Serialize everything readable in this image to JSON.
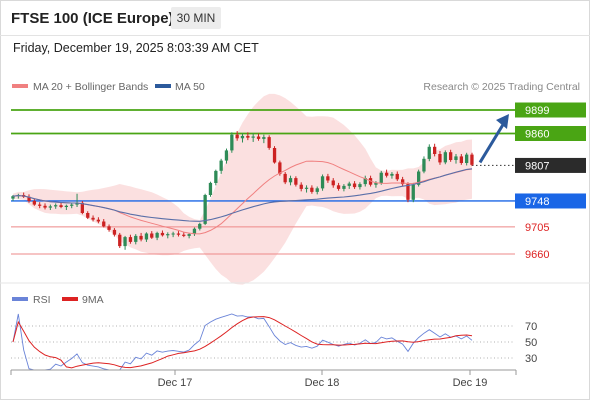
{
  "header": {
    "title": "FTSE 100 (ICE Europe)",
    "interval": "30 MIN",
    "timestamp": "Friday, December 19, 2025 8:03:39 AM CET"
  },
  "legend": {
    "ma20_bb": "MA 20 + Bollinger Bands",
    "ma50": "MA 50",
    "credit": "Research © 2025 Trading Central"
  },
  "rsi_legend": {
    "rsi": "RSI",
    "ma9": "9MA"
  },
  "colors": {
    "up": "#2e8b57",
    "down": "#cc2222",
    "ma20": "#f08080",
    "band_fill": "#fadada",
    "ma50": "#5a6fa8",
    "resistance": "#4aa514",
    "support_current": "#1a66e6",
    "support": "#ee8888",
    "current": "#2b2b2b",
    "arrow": "#2c5a9c",
    "rsi": "#6a84d8",
    "rsi_ma": "#dd2222"
  },
  "chart_data": [
    {
      "type": "candlestick",
      "x_labels": [
        "Dec 17",
        "Dec 18",
        "Dec 19"
      ],
      "y_ticks": [
        9899,
        9860,
        9807,
        9748,
        9705,
        9660
      ],
      "levels": [
        {
          "value": 9899,
          "label": "9899",
          "kind": "resistance"
        },
        {
          "value": 9860,
          "label": "9860",
          "kind": "resistance"
        },
        {
          "value": 9807,
          "label": "9807",
          "kind": "current"
        },
        {
          "value": 9748,
          "label": "9748",
          "kind": "support_current"
        },
        {
          "value": 9705,
          "label": "9705",
          "kind": "support"
        },
        {
          "value": 9660,
          "label": "9660",
          "kind": "support"
        }
      ],
      "candles": [
        [
          9752,
          9758,
          9748,
          9756
        ],
        [
          9756,
          9760,
          9752,
          9758
        ],
        [
          9758,
          9762,
          9753,
          9755
        ],
        [
          9755,
          9759,
          9745,
          9748
        ],
        [
          9748,
          9752,
          9740,
          9742
        ],
        [
          9742,
          9746,
          9736,
          9740
        ],
        [
          9740,
          9744,
          9734,
          9737
        ],
        [
          9737,
          9742,
          9733,
          9739
        ],
        [
          9739,
          9744,
          9735,
          9741
        ],
        [
          9741,
          9745,
          9736,
          9738
        ],
        [
          9738,
          9742,
          9733,
          9740
        ],
        [
          9740,
          9744,
          9736,
          9742
        ],
        [
          9742,
          9760,
          9738,
          9745
        ],
        [
          9745,
          9748,
          9726,
          9728
        ],
        [
          9728,
          9731,
          9718,
          9720
        ],
        [
          9720,
          9724,
          9714,
          9717
        ],
        [
          9717,
          9721,
          9711,
          9714
        ],
        [
          9714,
          9718,
          9704,
          9706
        ],
        [
          9706,
          9709,
          9697,
          9700
        ],
        [
          9700,
          9703,
          9689,
          9692
        ],
        [
          9692,
          9695,
          9670,
          9673
        ],
        [
          9673,
          9690,
          9667,
          9688
        ],
        [
          9688,
          9692,
          9677,
          9680
        ],
        [
          9680,
          9693,
          9676,
          9690
        ],
        [
          9690,
          9695,
          9681,
          9684
        ],
        [
          9684,
          9696,
          9680,
          9694
        ],
        [
          9694,
          9698,
          9685,
          9687
        ],
        [
          9687,
          9697,
          9683,
          9695
        ],
        [
          9695,
          9699,
          9689,
          9691
        ],
        [
          9691,
          9696,
          9686,
          9693
        ],
        [
          9693,
          9697,
          9688,
          9694
        ],
        [
          9694,
          9698,
          9689,
          9692
        ],
        [
          9692,
          9696,
          9688,
          9690
        ],
        [
          9690,
          9695,
          9686,
          9693
        ],
        [
          9693,
          9704,
          9690,
          9702
        ],
        [
          9702,
          9712,
          9699,
          9710
        ],
        [
          9710,
          9760,
          9708,
          9758
        ],
        [
          9758,
          9780,
          9755,
          9778
        ],
        [
          9778,
          9800,
          9774,
          9798
        ],
        [
          9798,
          9818,
          9793,
          9815
        ],
        [
          9815,
          9835,
          9810,
          9832
        ],
        [
          9832,
          9862,
          9828,
          9858
        ],
        [
          9858,
          9864,
          9848,
          9852
        ],
        [
          9852,
          9860,
          9845,
          9856
        ],
        [
          9856,
          9862,
          9849,
          9853
        ],
        [
          9853,
          9860,
          9846,
          9855
        ],
        [
          9855,
          9860,
          9848,
          9851
        ],
        [
          9851,
          9858,
          9844,
          9854
        ],
        [
          9854,
          9857,
          9833,
          9836
        ],
        [
          9836,
          9839,
          9810,
          9812
        ],
        [
          9812,
          9815,
          9790,
          9793
        ],
        [
          9793,
          9796,
          9776,
          9779
        ],
        [
          9779,
          9790,
          9774,
          9786
        ],
        [
          9786,
          9789,
          9772,
          9775
        ],
        [
          9775,
          9779,
          9764,
          9768
        ],
        [
          9768,
          9774,
          9762,
          9770
        ],
        [
          9770,
          9774,
          9760,
          9763
        ],
        [
          9763,
          9772,
          9759,
          9769
        ],
        [
          9769,
          9792,
          9765,
          9789
        ],
        [
          9789,
          9793,
          9778,
          9782
        ],
        [
          9782,
          9786,
          9770,
          9774
        ],
        [
          9774,
          9778,
          9765,
          9768
        ],
        [
          9768,
          9776,
          9764,
          9773
        ],
        [
          9773,
          9780,
          9768,
          9777
        ],
        [
          9777,
          9781,
          9768,
          9771
        ],
        [
          9771,
          9779,
          9767,
          9776
        ],
        [
          9776,
          9790,
          9772,
          9786
        ],
        [
          9786,
          9790,
          9772,
          9775
        ],
        [
          9775,
          9781,
          9770,
          9778
        ],
        [
          9778,
          9798,
          9775,
          9795
        ],
        [
          9795,
          9800,
          9787,
          9790
        ],
        [
          9790,
          9796,
          9785,
          9793
        ],
        [
          9793,
          9797,
          9781,
          9784
        ],
        [
          9784,
          9788,
          9772,
          9776
        ],
        [
          9776,
          9779,
          9746,
          9750
        ],
        [
          9750,
          9778,
          9746,
          9775
        ],
        [
          9775,
          9800,
          9772,
          9797
        ],
        [
          9797,
          9822,
          9794,
          9818
        ],
        [
          9818,
          9842,
          9814,
          9838
        ],
        [
          9838,
          9843,
          9822,
          9826
        ],
        [
          9826,
          9831,
          9808,
          9812
        ],
        [
          9812,
          9832,
          9809,
          9829
        ],
        [
          9829,
          9833,
          9813,
          9816
        ],
        [
          9816,
          9826,
          9810,
          9822
        ],
        [
          9822,
          9826,
          9808,
          9811
        ],
        [
          9811,
          9828,
          9807,
          9825
        ],
        [
          9825,
          9828,
          9806,
          9808
        ]
      ]
    },
    {
      "type": "line",
      "name": "RSI",
      "y_ticks": [
        70,
        50,
        30
      ]
    }
  ]
}
